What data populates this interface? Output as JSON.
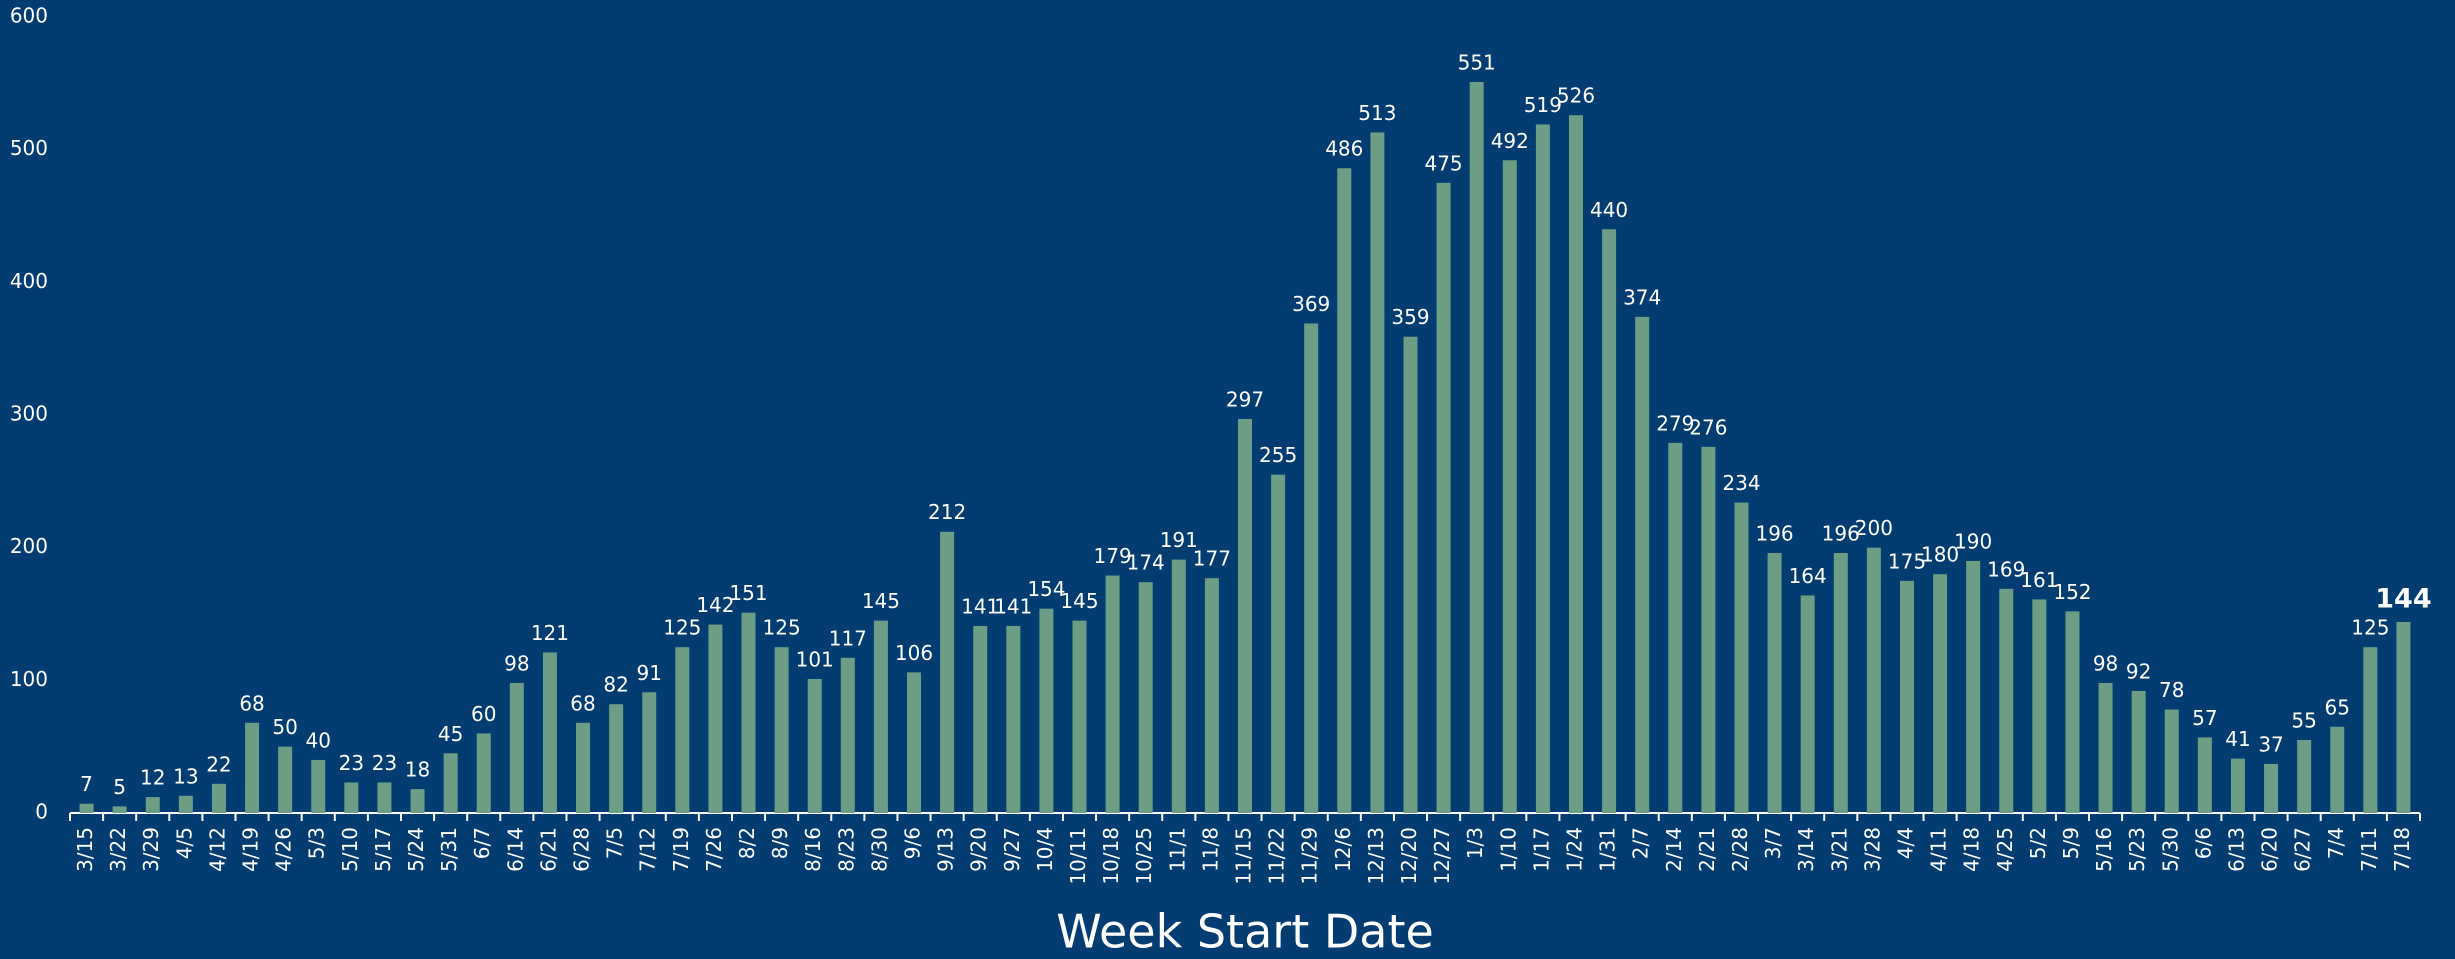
{
  "chart_data": {
    "type": "bar",
    "x_label": "Week Start Date",
    "categories": [
      "3/15",
      "3/22",
      "3/29",
      "4/5",
      "4/12",
      "4/19",
      "4/26",
      "5/3",
      "5/10",
      "5/17",
      "5/24",
      "5/31",
      "6/7",
      "6/14",
      "6/21",
      "6/28",
      "7/5",
      "7/12",
      "7/19",
      "7/26",
      "8/2",
      "8/9",
      "8/16",
      "8/23",
      "8/30",
      "9/6",
      "9/13",
      "9/20",
      "9/27",
      "10/4",
      "10/11",
      "10/18",
      "10/25",
      "11/1",
      "11/8",
      "11/15",
      "11/22",
      "11/29",
      "12/6",
      "12/13",
      "12/20",
      "12/27",
      "1/3",
      "1/10",
      "1/17",
      "1/24",
      "1/31",
      "2/7",
      "2/14",
      "2/21",
      "2/28",
      "3/7",
      "3/14",
      "3/21",
      "3/28",
      "4/4",
      "4/11",
      "4/18",
      "4/25",
      "5/2",
      "5/9",
      "5/16",
      "5/23",
      "5/30",
      "6/6",
      "6/13",
      "6/20",
      "6/27",
      "7/4",
      "7/11",
      "7/18"
    ],
    "values": [
      7,
      5,
      12,
      13,
      22,
      68,
      50,
      40,
      23,
      23,
      18,
      45,
      60,
      98,
      121,
      68,
      82,
      91,
      125,
      142,
      151,
      125,
      101,
      117,
      145,
      106,
      212,
      141,
      141,
      154,
      145,
      179,
      174,
      191,
      177,
      297,
      255,
      369,
      486,
      513,
      359,
      475,
      551,
      492,
      519,
      526,
      440,
      374,
      279,
      276,
      234,
      196,
      164,
      196,
      200,
      175,
      180,
      190,
      169,
      161,
      152,
      98,
      92,
      78,
      57,
      41,
      37,
      55,
      65,
      125,
      144
    ],
    "color": "#6e9d85",
    "ylim": [
      0,
      600
    ],
    "yticks": [
      0,
      100,
      200,
      300,
      400,
      500,
      600
    ],
    "grid": false
  }
}
